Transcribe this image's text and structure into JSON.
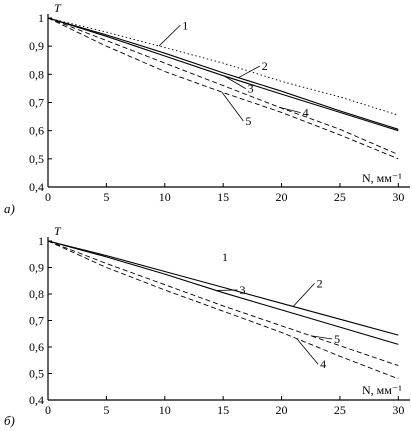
{
  "chart_data": [
    {
      "type": "line",
      "panel_label": "а)",
      "ylabel": "T",
      "xlabel": "N, мм⁻¹",
      "xlim": [
        0,
        31
      ],
      "ylim": [
        0.4,
        1.0
      ],
      "xticks": [
        0,
        5,
        10,
        15,
        20,
        25,
        30
      ],
      "yticks": [
        0.4,
        0.5,
        0.6,
        0.7,
        0.8,
        0.9,
        1
      ],
      "ytick_labels": [
        "0,4",
        "0,5",
        "0,6",
        "0,7",
        "0,8",
        "0,9",
        "1"
      ],
      "series": [
        {
          "name": "1",
          "style": "dotted",
          "x": [
            0,
            5,
            10,
            15,
            20,
            25,
            30
          ],
          "y": [
            1.0,
            0.95,
            0.895,
            0.84,
            0.775,
            0.72,
            0.655
          ]
        },
        {
          "name": "2",
          "style": "solid",
          "x": [
            0,
            5,
            10,
            15,
            20,
            25,
            30
          ],
          "y": [
            1.0,
            0.94,
            0.875,
            0.805,
            0.74,
            0.67,
            0.605
          ]
        },
        {
          "name": "3",
          "style": "solid",
          "x": [
            0,
            5,
            10,
            15,
            20,
            25,
            30
          ],
          "y": [
            1.0,
            0.935,
            0.865,
            0.795,
            0.73,
            0.665,
            0.6
          ]
        },
        {
          "name": "4",
          "style": "dashed",
          "x": [
            0,
            5,
            10,
            15,
            20,
            25,
            30
          ],
          "y": [
            1.0,
            0.92,
            0.84,
            0.76,
            0.68,
            0.605,
            0.515
          ]
        },
        {
          "name": "5",
          "style": "dashed",
          "x": [
            0,
            5,
            10,
            15,
            20,
            25,
            30
          ],
          "y": [
            1.0,
            0.9,
            0.81,
            0.735,
            0.665,
            0.585,
            0.5
          ]
        }
      ],
      "curve_labels": [
        {
          "text": "1",
          "x": 11.5,
          "y": 0.96
        },
        {
          "text": "2",
          "x": 18.3,
          "y": 0.815
        },
        {
          "text": "3",
          "x": 17.1,
          "y": 0.735
        },
        {
          "text": "4",
          "x": 21.8,
          "y": 0.65
        },
        {
          "text": "5",
          "x": 16.9,
          "y": 0.62
        }
      ]
    },
    {
      "type": "line",
      "panel_label": "б)",
      "ylabel": "T",
      "xlabel": "N, мм⁻¹",
      "xlim": [
        0,
        31
      ],
      "ylim": [
        0.4,
        1.0
      ],
      "xticks": [
        0,
        5,
        10,
        15,
        20,
        25,
        30
      ],
      "yticks": [
        0.4,
        0.5,
        0.6,
        0.7,
        0.8,
        0.9,
        1
      ],
      "ytick_labels": [
        "0,4",
        "0,5",
        "0,6",
        "0,7",
        "0,8",
        "0,9",
        "1"
      ],
      "series": [
        {
          "name": "2",
          "style": "solid",
          "x": [
            0,
            5,
            10,
            15,
            20,
            25,
            30
          ],
          "y": [
            1.0,
            0.945,
            0.885,
            0.825,
            0.765,
            0.705,
            0.645
          ]
        },
        {
          "name": "3",
          "style": "solid",
          "x": [
            0,
            5,
            10,
            15,
            20,
            25,
            30
          ],
          "y": [
            1.0,
            0.94,
            0.875,
            0.805,
            0.74,
            0.675,
            0.61
          ]
        },
        {
          "name": "5",
          "style": "dashed",
          "x": [
            0,
            5,
            10,
            15,
            20,
            25,
            30
          ],
          "y": [
            1.0,
            0.915,
            0.835,
            0.755,
            0.68,
            0.605,
            0.53
          ]
        },
        {
          "name": "4",
          "style": "dashed",
          "x": [
            0,
            5,
            10,
            15,
            20,
            25,
            30
          ],
          "y": [
            1.0,
            0.9,
            0.815,
            0.735,
            0.655,
            0.565,
            0.48
          ]
        }
      ],
      "curve_labels": [
        {
          "text": "1",
          "x": 14.9,
          "y": 0.925
        },
        {
          "text": "2",
          "x": 23.0,
          "y": 0.825
        },
        {
          "text": "3",
          "x": 16.4,
          "y": 0.8
        },
        {
          "text": "5",
          "x": 24.5,
          "y": 0.615
        },
        {
          "text": "4",
          "x": 23.3,
          "y": 0.52
        }
      ]
    }
  ]
}
